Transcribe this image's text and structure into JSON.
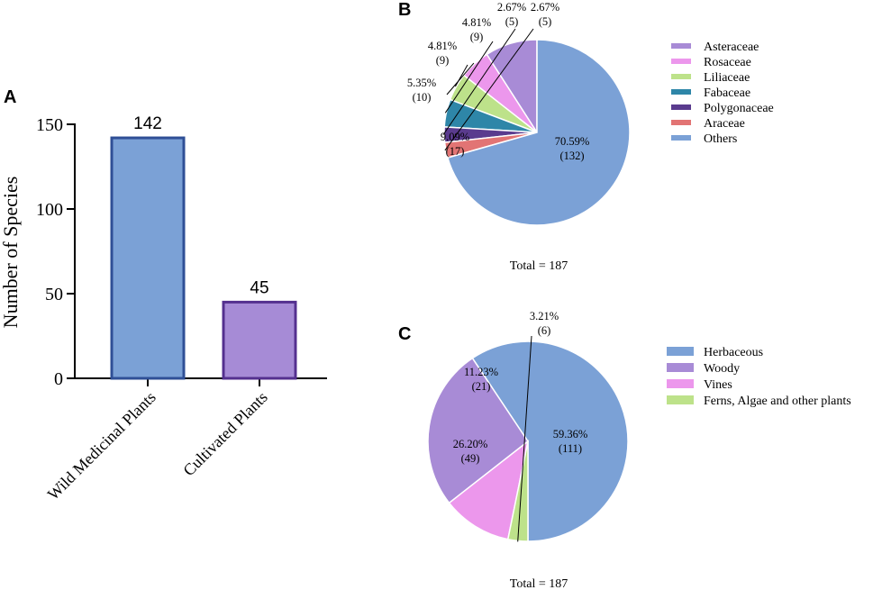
{
  "chart_data": [
    {
      "panel": "A",
      "type": "bar",
      "title": "",
      "xlabel": "",
      "ylabel": "Number of Species",
      "categories": [
        "Wild Medicinal Plants",
        "Cultivated Plants"
      ],
      "values": [
        142,
        45
      ],
      "value_labels": [
        "142",
        "45"
      ],
      "ylim": [
        0,
        150
      ],
      "yticks": [
        0,
        50,
        100,
        150
      ],
      "colors": {
        "fill": [
          "#7ba1d6",
          "#a68bd6"
        ],
        "stroke": [
          "#2f4f96",
          "#54308f"
        ]
      }
    },
    {
      "panel": "B",
      "type": "pie",
      "total_label": "Total = 187",
      "slices": [
        {
          "name": "Asteraceae",
          "percent": 9.09,
          "percent_label": "9.09%",
          "count": 17,
          "count_label": "(17)",
          "color": "#a88bd6"
        },
        {
          "name": "Rosaceae",
          "percent": 5.35,
          "percent_label": "5.35%",
          "count": 10,
          "count_label": "(10)",
          "color": "#ec97ec"
        },
        {
          "name": "Liliaceae",
          "percent": 4.81,
          "percent_label": "4.81%",
          "count": 9,
          "count_label": "(9)",
          "color": "#bde28a"
        },
        {
          "name": "Fabaceae",
          "percent": 4.81,
          "percent_label": "4.81%",
          "count": 9,
          "count_label": "(9)",
          "color": "#2e86a8"
        },
        {
          "name": "Polygonaceae",
          "percent": 2.67,
          "percent_label": "2.67%",
          "count": 5,
          "count_label": "(5)",
          "color": "#5a3b8e"
        },
        {
          "name": "Araceae",
          "percent": 2.67,
          "percent_label": "2.67%",
          "count": 5,
          "count_label": "(5)",
          "color": "#e27474"
        },
        {
          "name": "Others",
          "percent": 70.59,
          "percent_label": "70.59%",
          "count": 132,
          "count_label": "(132)",
          "color": "#7ba1d6"
        }
      ]
    },
    {
      "panel": "C",
      "type": "pie",
      "total_label": "Total = 187",
      "slices": [
        {
          "name": "Herbaceous",
          "percent": 59.36,
          "percent_label": "59.36%",
          "count": 111,
          "count_label": "(111)",
          "color": "#7ba1d6"
        },
        {
          "name": "Woody",
          "percent": 26.2,
          "percent_label": "26.20%",
          "count": 49,
          "count_label": "(49)",
          "color": "#a88bd6"
        },
        {
          "name": "Vines",
          "percent": 11.23,
          "percent_label": "11.23%",
          "count": 21,
          "count_label": "(21)",
          "color": "#ec97ec"
        },
        {
          "name": "Ferns, Algae and other plants",
          "percent": 3.21,
          "percent_label": "3.21%",
          "count": 6,
          "count_label": "(6)",
          "color": "#bde28a"
        }
      ]
    }
  ],
  "panel_letters": {
    "a": "A",
    "b": "B",
    "c": "C"
  }
}
